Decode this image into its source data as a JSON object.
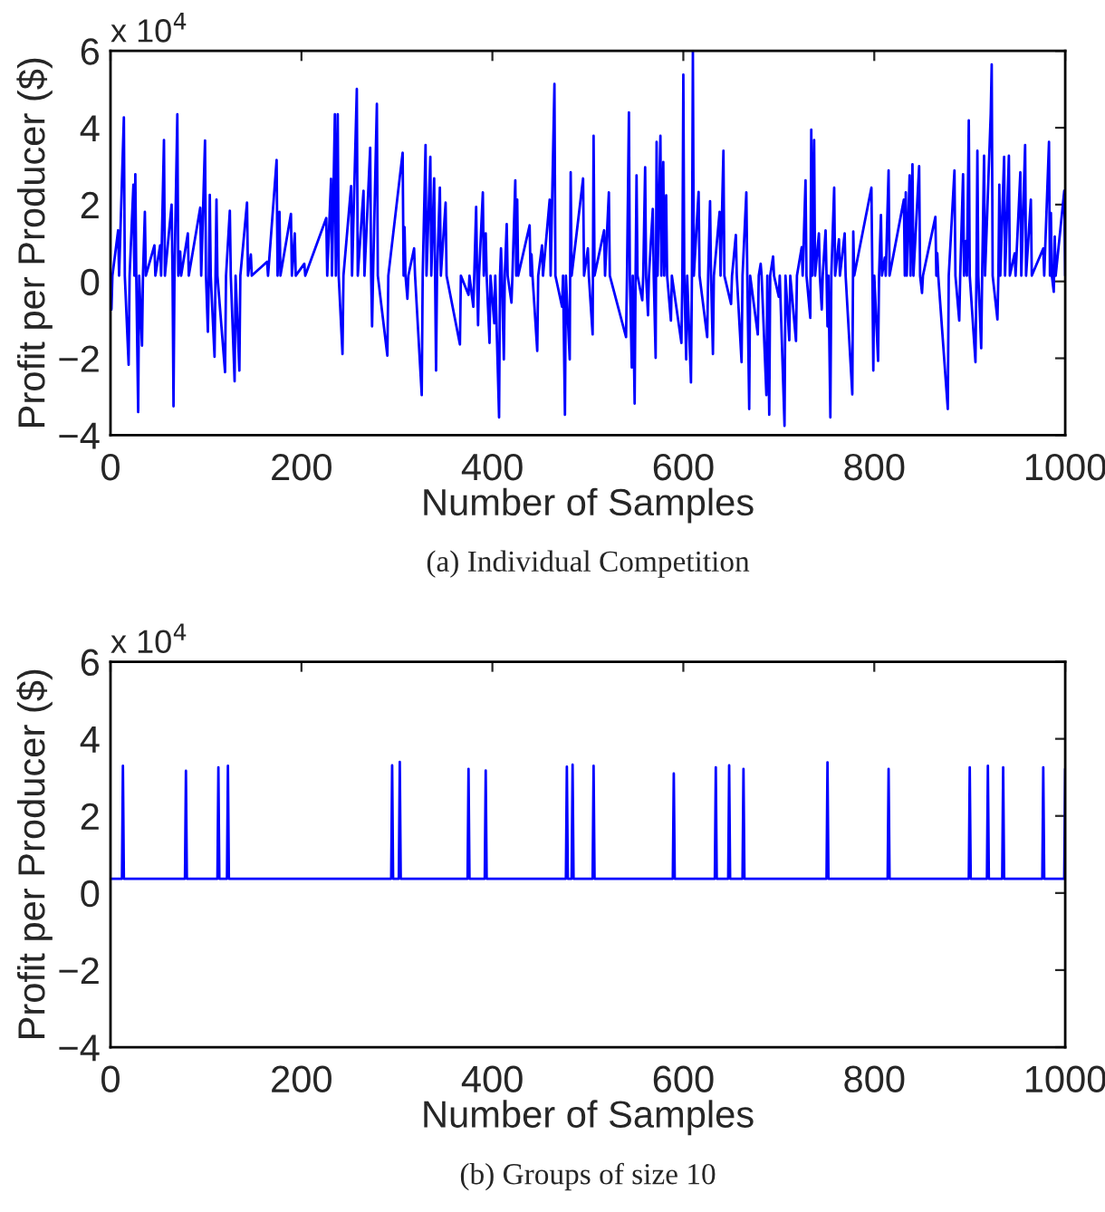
{
  "chart_data": [
    {
      "type": "line",
      "xlabel": "Number of Samples",
      "ylabel": "Profit per Producer ($)",
      "annotations": [
        "x 10$^{4}$",
        "(a) Individual Competition"
      ],
      "xlim": [
        0,
        1000
      ],
      "ylim": [
        -4,
        6
      ],
      "xticks": [
        0,
        200,
        400,
        600,
        800,
        1000
      ],
      "yticks": [
        -4,
        -2,
        0,
        2,
        4,
        6
      ],
      "grid": false,
      "legend": false,
      "series": [
        {
          "color": "#0000ff",
          "x": [
            0,
            1,
            2,
            8,
            9,
            14,
            15,
            19,
            20,
            24,
            25,
            26,
            27,
            29,
            30,
            33,
            34,
            36,
            37,
            46,
            47,
            52,
            53,
            56,
            57,
            64,
            65,
            66,
            67,
            70,
            71,
            73,
            74,
            81,
            82,
            94,
            95,
            99,
            100,
            102,
            103,
            104,
            105,
            109,
            110,
            111,
            112,
            120,
            121,
            125,
            126,
            130,
            131,
            135,
            136,
            143,
            144,
            147,
            148,
            164,
            165,
            174,
            175,
            177,
            178,
            189,
            190,
            193,
            194,
            203,
            204,
            226,
            227,
            231,
            232,
            235,
            236,
            238,
            239,
            243,
            244,
            252,
            253,
            258,
            259,
            265,
            266,
            272,
            273,
            274,
            275,
            279,
            280,
            290,
            291,
            306,
            307,
            308,
            309,
            311,
            312,
            318,
            319,
            326,
            327,
            330,
            331,
            335,
            336,
            339,
            340,
            341,
            342,
            345,
            346,
            351,
            352,
            366,
            367,
            375,
            376,
            380,
            381,
            383,
            384,
            385,
            386,
            390,
            391,
            393,
            394,
            397,
            398,
            402,
            403,
            407,
            408,
            409,
            410,
            412,
            413,
            415,
            416,
            420,
            421,
            424,
            425,
            426,
            427,
            439,
            440,
            441,
            442,
            447,
            448,
            452,
            453,
            460,
            461,
            465,
            466,
            473,
            474,
            476,
            477,
            481,
            482,
            483,
            495,
            496,
            500,
            501,
            505,
            506,
            507,
            517,
            518,
            522,
            523,
            540,
            541,
            543,
            544,
            546,
            547,
            549,
            550,
            551,
            552,
            557,
            558,
            560,
            561,
            563,
            564,
            568,
            569,
            571,
            572,
            573,
            576,
            577,
            579,
            580,
            582,
            583,
            587,
            588,
            598,
            599,
            600,
            601,
            603,
            604,
            608,
            609,
            610,
            611,
            616,
            617,
            625,
            626,
            628,
            629,
            631,
            632,
            638,
            639,
            642,
            643,
            650,
            651,
            655,
            656,
            661,
            662,
            666,
            667,
            669,
            670,
            678,
            679,
            681,
            682,
            687,
            688,
            690,
            691,
            694,
            695,
            700,
            701,
            706,
            707,
            711,
            712,
            718,
            719,
            724,
            725,
            728,
            729,
            733,
            734,
            735,
            737,
            738,
            742,
            743,
            745,
            746,
            749,
            750,
            751,
            752,
            754,
            755,
            758,
            759,
            763,
            764,
            769,
            770,
            777,
            778,
            779,
            797,
            798,
            799,
            800,
            804,
            805,
            807,
            808,
            811,
            812,
            815,
            816,
            831,
            832,
            833,
            834,
            837,
            838,
            840,
            841,
            847,
            848,
            850,
            851,
            864,
            865,
            866,
            867,
            877,
            878,
            884,
            885,
            889,
            890,
            893,
            894,
            896,
            897,
            899,
            900,
            906,
            907,
            908,
            909,
            912,
            913,
            915,
            916,
            922,
            923,
            924,
            929,
            930,
            931,
            932,
            936,
            937,
            941,
            942,
            947,
            948,
            953,
            954,
            958,
            959,
            964,
            965,
            977,
            978,
            983,
            984,
            985,
            986,
            988,
            989,
            990,
            999,
            1000
          ],
          "values": [
            0.15,
            -0.73,
            0.15,
            1.33,
            0.15,
            4.27,
            0.15,
            -2.17,
            0.15,
            2.52,
            0.15,
            2.79,
            0.15,
            -3.4,
            0.15,
            -1.67,
            0.15,
            1.81,
            0.15,
            0.94,
            0.15,
            0.94,
            0.15,
            3.68,
            0.15,
            2.0,
            0.15,
            -3.25,
            0.15,
            4.35,
            0.15,
            0.78,
            0.15,
            1.25,
            0.15,
            1.92,
            0.15,
            3.67,
            0.15,
            -1.31,
            0.15,
            2.25,
            0.15,
            -1.96,
            0.15,
            2.13,
            0.15,
            -2.36,
            0.15,
            1.84,
            0.15,
            -2.6,
            0.15,
            -2.32,
            0.15,
            2.05,
            0.15,
            0.7,
            0.15,
            0.51,
            0.15,
            3.16,
            0.15,
            1.81,
            0.15,
            1.76,
            0.15,
            1.25,
            0.15,
            0.46,
            0.15,
            1.65,
            0.15,
            2.67,
            0.15,
            4.35,
            0.15,
            4.35,
            0.15,
            -1.89,
            0.15,
            2.48,
            0.15,
            5.01,
            0.15,
            2.36,
            0.15,
            3.48,
            0.15,
            -1.17,
            0.15,
            4.62,
            0.15,
            -1.93,
            0.15,
            3.35,
            0.15,
            1.41,
            0.15,
            -0.45,
            0.15,
            0.86,
            0.15,
            -2.96,
            0.15,
            3.55,
            0.15,
            3.24,
            0.15,
            2.68,
            0.15,
            -2.32,
            0.15,
            2.44,
            0.15,
            2.05,
            0.15,
            -1.64,
            0.15,
            -0.35,
            0.15,
            -0.66,
            0.15,
            1.94,
            0.15,
            -1.14,
            0.15,
            2.32,
            0.15,
            1.25,
            0.15,
            -1.6,
            0.15,
            -1.09,
            0.15,
            -3.54,
            0.15,
            0.86,
            0.15,
            -2.03,
            0.15,
            1.49,
            0.15,
            -0.55,
            0.15,
            2.63,
            0.15,
            2.13,
            0.15,
            1.46,
            0.15,
            0.7,
            0.15,
            -1.81,
            0.15,
            0.94,
            0.15,
            2.13,
            0.15,
            5.14,
            0.15,
            -0.66,
            0.15,
            -3.47,
            0.15,
            -2.03,
            2.84,
            0.15,
            2.68,
            0.15,
            0.86,
            0.15,
            -1.38,
            3.79,
            0.15,
            1.33,
            0.15,
            2.32,
            0.15,
            -1.45,
            0.15,
            4.4,
            0.15,
            -2.24,
            0.15,
            -3.18,
            0.15,
            2.76,
            0.15,
            -0.49,
            0.15,
            2.97,
            0.15,
            -0.88,
            0.15,
            1.89,
            0.15,
            -1.99,
            3.63,
            0.15,
            3.79,
            0.15,
            3.11,
            0.15,
            2.24,
            0.15,
            -1.02,
            0.15,
            -1.6,
            0.15,
            5.38,
            0.15,
            -2.03,
            0.15,
            -2.63,
            0.15,
            6.0,
            0.15,
            2.33,
            0.15,
            -1.45,
            0.15,
            2.09,
            0.15,
            -1.89,
            0.15,
            1.81,
            0.15,
            3.4,
            0.15,
            -0.59,
            0.15,
            1.21,
            0.15,
            -2.1,
            0.15,
            2.32,
            0.15,
            -3.32,
            0.15,
            -1.38,
            0.15,
            0.46,
            0.15,
            -2.96,
            0.15,
            -3.47,
            0.15,
            0.65,
            0.15,
            -0.4,
            0.15,
            -3.76,
            0.15,
            -1.53,
            0.15,
            -1.55,
            0.15,
            0.89,
            0.15,
            2.63,
            0.15,
            -0.95,
            3.95,
            0.15,
            3.68,
            0.15,
            1.25,
            0.15,
            -0.73,
            0.15,
            1.33,
            0.15,
            -1.17,
            0.15,
            -3.54,
            0.15,
            2.44,
            0.15,
            1.1,
            0.15,
            1.25,
            0.15,
            -2.94,
            1.3,
            0.15,
            2.44,
            0.15,
            -2.32,
            0.15,
            -2.07,
            0.15,
            1.73,
            0.15,
            0.62,
            0.15,
            2.89,
            0.15,
            2.13,
            0.15,
            2.32,
            0.15,
            2.76,
            0.15,
            3.05,
            0.15,
            3.0,
            0.15,
            -0.3,
            0.15,
            1.68,
            0.15,
            0.73,
            0.15,
            -3.32,
            0.15,
            2.89,
            0.15,
            -1.02,
            0.15,
            2.79,
            0.15,
            1.05,
            0.15,
            4.19,
            0.15,
            -2.1,
            0.15,
            3.4,
            0.15,
            -1.74,
            0.15,
            3.27,
            0.15,
            4.38,
            5.65,
            0.15,
            -0.99,
            0.15,
            2.52,
            0.15,
            3.24,
            0.15,
            3.27,
            0.15,
            0.73,
            0.15,
            2.84,
            0.15,
            3.55,
            0.15,
            2.13,
            0.15,
            0.86,
            0.15,
            3.63,
            0.15,
            1.78,
            0.15,
            -0.27,
            1.17,
            0.15,
            2.36,
            0.15
          ]
        }
      ]
    },
    {
      "type": "line",
      "xlabel": "Number of Samples",
      "ylabel": "Profit per Producer ($)",
      "annotations": [
        "x 10$^{4}$",
        "(b) Groups of size 10"
      ],
      "xlim": [
        0,
        1000
      ],
      "ylim": [
        -4,
        6
      ],
      "xticks": [
        0,
        200,
        400,
        600,
        800,
        1000
      ],
      "yticks": [
        -4,
        -2,
        0,
        2,
        4,
        6
      ],
      "grid": false,
      "legend": false,
      "series": [
        {
          "color": "#0000ff",
          "x": [
            0,
            12,
            13,
            14,
            78,
            79,
            80,
            112,
            113,
            114,
            122,
            123,
            124,
            294,
            295,
            296,
            302,
            303,
            304,
            374,
            375,
            376,
            392,
            393,
            394,
            477,
            478,
            479,
            483,
            484,
            485,
            505,
            506,
            507,
            589,
            590,
            591,
            633,
            634,
            635,
            647,
            648,
            649,
            662,
            663,
            664,
            750,
            751,
            752,
            814,
            815,
            816,
            899,
            900,
            901,
            918,
            919,
            920,
            934,
            935,
            936,
            976,
            977,
            978,
            999,
            1000
          ],
          "values": [
            0.37,
            0.37,
            3.3,
            0.37,
            0.37,
            3.17,
            0.37,
            0.37,
            3.26,
            0.37,
            0.37,
            3.3,
            0.37,
            0.37,
            3.31,
            0.37,
            0.37,
            3.4,
            0.37,
            0.37,
            3.22,
            0.37,
            0.37,
            3.18,
            0.37,
            0.37,
            3.28,
            0.37,
            0.37,
            3.33,
            0.37,
            0.37,
            3.3,
            0.37,
            0.37,
            3.1,
            0.37,
            0.37,
            3.26,
            0.37,
            0.37,
            3.31,
            0.37,
            0.37,
            3.22,
            0.37,
            0.37,
            3.39,
            0.37,
            0.37,
            3.22,
            0.37,
            0.37,
            3.26,
            0.37,
            0.37,
            3.3,
            0.37,
            0.37,
            3.26,
            0.37,
            0.37,
            3.26,
            0.37,
            0.37,
            3.22
          ]
        }
      ]
    }
  ]
}
